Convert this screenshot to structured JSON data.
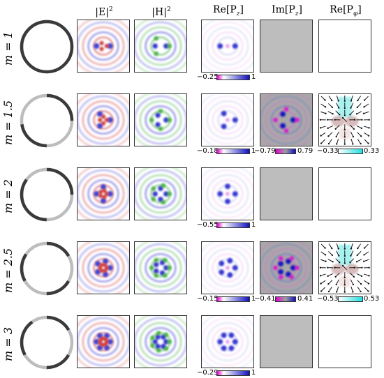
{
  "headers": {
    "E2": "|E|",
    "E2_sup": "2",
    "H2": "|H|",
    "H2_sup": "2",
    "rePz": "Re[P",
    "rePz_sub": "z",
    "imPz": "Im[P",
    "imPz_sub": "z",
    "rePphi": "Re[P",
    "rePphi_sub": "φ",
    "bracket": "]"
  },
  "rows": [
    {
      "label": "m = 1",
      "m": 1,
      "re_lo": "−0.25",
      "re_hi": "1",
      "im_lo": "",
      "im_hi": "",
      "phi_lo": "",
      "phi_hi": "",
      "has_im": false,
      "has_phi": false
    },
    {
      "label": "m = 1.5",
      "m": 1.5,
      "re_lo": "−0.18",
      "re_hi": "1",
      "im_lo": "−0.79",
      "im_hi": "0.79",
      "phi_lo": "−0.33",
      "phi_hi": "0.33",
      "has_im": true,
      "has_phi": true
    },
    {
      "label": "m = 2",
      "m": 2,
      "re_lo": "−0.55",
      "re_hi": "1",
      "im_lo": "",
      "im_hi": "",
      "phi_lo": "",
      "phi_hi": "",
      "has_im": false,
      "has_phi": false
    },
    {
      "label": "m = 2.5",
      "m": 2.5,
      "re_lo": "−0.15",
      "re_hi": "1",
      "im_lo": "−0.41",
      "im_hi": "0.41",
      "phi_lo": "−0.53",
      "phi_hi": "0.53",
      "has_im": true,
      "has_phi": true
    },
    {
      "label": "m = 3",
      "m": 3,
      "re_lo": "−0.29",
      "re_hi": "1",
      "im_lo": "",
      "im_hi": "",
      "phi_lo": "",
      "phi_hi": "",
      "has_im": false,
      "has_phi": false
    }
  ],
  "colors": {
    "ring_dark": "#3a3a3a",
    "ring_light": "#bdbdbd",
    "e_pos": "#d23a3a",
    "e_neg": "#3a3ad2",
    "h_green": "#2faa2f",
    "h_blue": "#2a2ad0",
    "re_grad": "linear-gradient(to right, #e000d0, #ffffff 20%, #1010c0)",
    "im_grad": "linear-gradient(to right, #e000d0, #a0a0a0 50%, #1010c0)",
    "phi_grad": "linear-gradient(to right, #ffffff, #20e0e0)",
    "empty_gray": "#bdbdbd"
  }
}
